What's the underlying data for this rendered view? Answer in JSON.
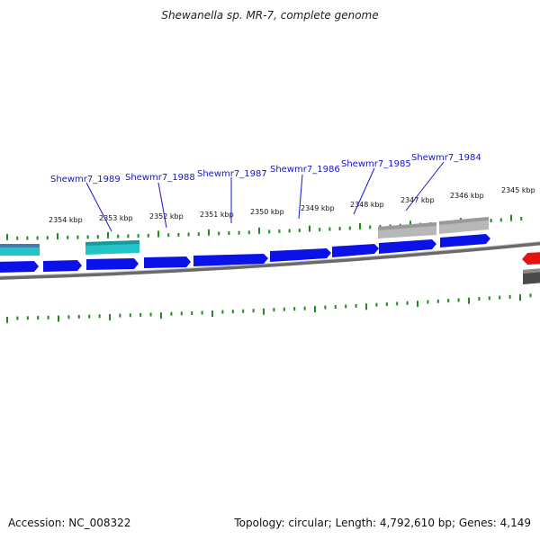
{
  "title": "Shewanella sp. MR-7, complete genome",
  "footer": {
    "accession": "Accession: NC_008322",
    "summary": "Topology: circular; Length: 4,792,610 bp; Genes: 4,149"
  },
  "colors": {
    "forward_gene": "#0a12e8",
    "cyan_feature": "#22c4c8",
    "grey_feature": "#b8b8b8",
    "red_feature": "#e81010",
    "tick": "#1f8a1f",
    "label": "#1414d2",
    "backbone": "#6a6a6a"
  },
  "scale_labels": [
    "2354 kbp",
    "2353 kbp",
    "2352 kbp",
    "2351 kbp",
    "2350 kbp",
    "2349 kbp",
    "2348 kbp",
    "2347 kbp",
    "2346 kbp",
    "2345 kbp"
  ],
  "gene_labels": [
    "Shewmr7_1989",
    "Shewmr7_1988",
    "Shewmr7_1987",
    "Shewmr7_1986",
    "Shewmr7_1985",
    "Shewmr7_1984"
  ]
}
